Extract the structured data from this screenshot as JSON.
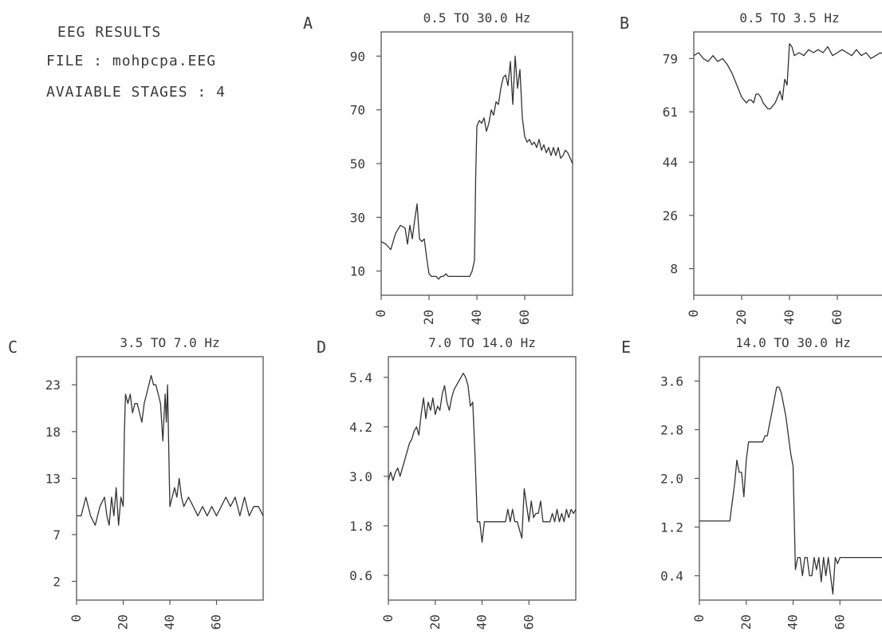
{
  "header": {
    "title": "EEG RESULTS",
    "file": "FILE : mohpcpa.EEG",
    "stages": "AVAIABLE STAGES : 4"
  },
  "colors": {
    "line": "#333333",
    "frame": "#555555",
    "text": "#3a3a3a"
  },
  "chart_data": [
    {
      "letter": "A",
      "title": "0.5 TO 30.0 Hz",
      "type": "line",
      "ylim": [
        1,
        99
      ],
      "xlim": [
        0,
        80
      ],
      "yticks": [
        10,
        30,
        50,
        70,
        90
      ],
      "ytick_labels": [
        "10",
        "30",
        "50",
        "70",
        "90"
      ],
      "xticks": [
        0,
        20,
        40,
        60
      ],
      "xtick_labels": [
        "0",
        "20",
        "40",
        "60"
      ],
      "grid": false,
      "series": [
        {
          "x": [
            0,
            2,
            4,
            6,
            8,
            10,
            11,
            12,
            13,
            14,
            15,
            16,
            17,
            18,
            19,
            20,
            21,
            22,
            23,
            24,
            25,
            26,
            27,
            28,
            29,
            30,
            31,
            32,
            33,
            34,
            35,
            36,
            37,
            38,
            39,
            39.5,
            40,
            41,
            42,
            43,
            44,
            45,
            46,
            47,
            48,
            49,
            50,
            51,
            52,
            53,
            54,
            55,
            56,
            57,
            58,
            59,
            60,
            61,
            62,
            63,
            64,
            65,
            66,
            67,
            68,
            69,
            70,
            71,
            72,
            73,
            74,
            75,
            76,
            77,
            78,
            79,
            80
          ],
          "y": [
            21,
            20,
            18,
            24,
            27,
            26,
            20,
            27,
            22,
            29,
            35,
            22,
            21,
            22,
            15,
            9,
            8,
            8,
            8,
            7,
            8,
            8,
            9,
            8,
            8,
            8,
            8,
            8,
            8,
            8,
            8,
            8,
            8,
            10,
            14,
            45,
            64,
            66,
            65,
            67,
            62,
            65,
            70,
            68,
            73,
            72,
            78,
            82,
            83,
            79,
            88,
            72,
            90,
            78,
            85,
            67,
            60,
            58,
            59,
            57,
            58,
            56,
            59,
            55,
            57,
            54,
            56,
            53,
            56,
            53,
            56,
            52,
            53,
            55,
            54,
            52,
            50
          ]
        }
      ]
    },
    {
      "letter": "B",
      "title": "0.5 TO 3.5 Hz",
      "type": "line",
      "ylim": [
        -1,
        88
      ],
      "xlim": [
        0,
        80
      ],
      "yticks": [
        8,
        26,
        44,
        61,
        79
      ],
      "ytick_labels": [
        "8",
        "26",
        "44",
        "61",
        "79"
      ],
      "xticks": [
        0,
        20,
        40,
        60
      ],
      "xtick_labels": [
        "0",
        "20",
        "40",
        "60"
      ],
      "grid": false,
      "series": [
        {
          "x": [
            0,
            2,
            4,
            6,
            8,
            10,
            12,
            14,
            16,
            17,
            18,
            19,
            20,
            21,
            22,
            23,
            24,
            25,
            26,
            27,
            28,
            29,
            30,
            31,
            32,
            33,
            34,
            35,
            36,
            37,
            38,
            39,
            40,
            41,
            42,
            44,
            46,
            48,
            50,
            52,
            54,
            56,
            58,
            60,
            62,
            64,
            66,
            68,
            70,
            72,
            74,
            76,
            78,
            80
          ],
          "y": [
            80,
            81,
            79,
            78,
            80,
            78,
            79,
            77,
            74,
            72,
            70,
            68,
            66,
            65,
            64,
            65,
            65,
            64,
            67,
            67,
            66,
            64,
            63,
            62,
            62,
            63,
            64,
            66,
            68,
            65,
            72,
            70,
            84,
            83,
            80,
            81,
            80,
            82,
            81,
            82,
            81,
            83,
            80,
            81,
            82,
            81,
            80,
            82,
            80,
            81,
            79,
            80,
            81,
            80
          ]
        }
      ]
    },
    {
      "letter": "C",
      "title": "3.5 TO 7.0 Hz",
      "type": "line",
      "ylim": [
        0,
        26
      ],
      "xlim": [
        0,
        80
      ],
      "yticks": [
        2,
        7,
        13,
        18,
        23
      ],
      "ytick_labels": [
        "2",
        "7",
        "13",
        "18",
        "23"
      ],
      "xticks": [
        0,
        20,
        40,
        60
      ],
      "xtick_labels": [
        "0",
        "20",
        "40",
        "60"
      ],
      "grid": false,
      "series": [
        {
          "x": [
            0,
            2,
            4,
            6,
            8,
            10,
            12,
            13,
            14,
            15,
            16,
            17,
            18,
            19,
            20,
            20.5,
            21,
            22,
            23,
            24,
            25,
            26,
            27,
            28,
            29,
            30,
            31,
            32,
            33,
            34,
            35,
            36,
            37,
            38,
            38.5,
            39,
            40,
            41,
            42,
            43,
            44,
            45,
            46,
            48,
            50,
            52,
            54,
            56,
            58,
            60,
            62,
            64,
            66,
            68,
            70,
            72,
            74,
            76,
            78,
            80
          ],
          "y": [
            9,
            9,
            11,
            9,
            8,
            10,
            11,
            9,
            8,
            11,
            9,
            12,
            8,
            11,
            10,
            18,
            22,
            21,
            22,
            20,
            21,
            21,
            20,
            19,
            21,
            22,
            23,
            24,
            23,
            23,
            22,
            21,
            17,
            22,
            19,
            23,
            10,
            11,
            12,
            11,
            13,
            11,
            10,
            11,
            10,
            9,
            10,
            9,
            10,
            9,
            10,
            11,
            10,
            11,
            9,
            11,
            9,
            10,
            10,
            9
          ]
        }
      ]
    },
    {
      "letter": "D",
      "title": "7.0 TO 14.0 Hz",
      "type": "line",
      "ylim": [
        0,
        5.9
      ],
      "xlim": [
        0,
        80
      ],
      "yticks": [
        0.6,
        1.8,
        3.0,
        4.2,
        5.4
      ],
      "ytick_labels": [
        "0.6",
        "1.8",
        "3.0",
        "4.2",
        "5.4"
      ],
      "xticks": [
        0,
        20,
        40,
        60
      ],
      "xtick_labels": [
        "0",
        "20",
        "40",
        "60"
      ],
      "grid": false,
      "series": [
        {
          "x": [
            0,
            1,
            2,
            3,
            4,
            5,
            6,
            7,
            8,
            9,
            10,
            11,
            12,
            13,
            14,
            15,
            16,
            17,
            18,
            19,
            20,
            21,
            22,
            23,
            24,
            25,
            26,
            27,
            28,
            29,
            30,
            31,
            32,
            33,
            34,
            35,
            36,
            37,
            38,
            39,
            40,
            41,
            42,
            43,
            44,
            45,
            46,
            47,
            48,
            49,
            50,
            51,
            52,
            53,
            54,
            55,
            56,
            57,
            58,
            59,
            60,
            61,
            62,
            63,
            64,
            65,
            66,
            67,
            68,
            69,
            70,
            71,
            72,
            73,
            74,
            75,
            76,
            77,
            78,
            79,
            80
          ],
          "y": [
            2.9,
            3.1,
            2.9,
            3.1,
            3.2,
            3.0,
            3.2,
            3.4,
            3.6,
            3.8,
            3.9,
            4.1,
            4.2,
            4.0,
            4.5,
            4.9,
            4.4,
            4.8,
            4.6,
            4.9,
            4.5,
            4.7,
            4.6,
            5.0,
            5.2,
            4.8,
            4.6,
            4.9,
            5.1,
            5.2,
            5.3,
            5.4,
            5.5,
            5.4,
            5.2,
            4.7,
            4.8,
            3.5,
            1.9,
            1.9,
            1.4,
            1.9,
            1.9,
            1.9,
            1.9,
            1.9,
            1.9,
            1.9,
            1.9,
            1.9,
            1.9,
            2.2,
            1.9,
            2.2,
            1.9,
            1.9,
            1.7,
            1.5,
            2.7,
            2.3,
            1.9,
            2.4,
            2.0,
            2.1,
            2.1,
            2.4,
            1.9,
            1.9,
            1.9,
            1.9,
            2.1,
            1.9,
            2.2,
            1.9,
            2.1,
            1.9,
            2.2,
            2.0,
            2.2,
            2.1,
            2.2
          ]
        }
      ]
    },
    {
      "letter": "E",
      "title": "14.0 TO 30.0 Hz",
      "type": "line",
      "ylim": [
        0,
        4.0
      ],
      "xlim": [
        0,
        80
      ],
      "yticks": [
        0.4,
        1.2,
        2.0,
        2.8,
        3.6
      ],
      "ytick_labels": [
        "0.4",
        "1.2",
        "2.0",
        "2.8",
        "3.6"
      ],
      "xticks": [
        0,
        20,
        40,
        60
      ],
      "xtick_labels": [
        "0",
        "20",
        "40",
        "60"
      ],
      "grid": false,
      "series": [
        {
          "x": [
            0,
            6,
            12,
            13,
            14,
            15,
            16,
            17,
            18,
            19,
            20,
            21,
            22,
            23,
            24,
            25,
            26,
            27,
            28,
            29,
            30,
            31,
            32,
            33,
            34,
            35,
            36,
            37,
            38,
            39,
            40,
            41,
            42,
            43,
            44,
            45,
            46,
            47,
            48,
            49,
            50,
            51,
            52,
            53,
            54,
            55,
            56,
            57,
            58,
            59,
            60,
            61,
            62,
            63,
            64,
            65,
            66,
            67,
            68,
            69,
            70,
            71,
            72,
            73,
            74,
            75,
            76,
            77,
            78,
            79,
            80
          ],
          "y": [
            1.3,
            1.3,
            1.3,
            1.3,
            1.6,
            1.9,
            2.3,
            2.1,
            2.1,
            1.7,
            2.3,
            2.6,
            2.6,
            2.6,
            2.6,
            2.6,
            2.6,
            2.6,
            2.7,
            2.7,
            2.9,
            3.1,
            3.3,
            3.5,
            3.5,
            3.4,
            3.2,
            3.0,
            2.7,
            2.4,
            2.2,
            0.5,
            0.7,
            0.7,
            0.4,
            0.7,
            0.7,
            0.4,
            0.4,
            0.7,
            0.5,
            0.7,
            0.3,
            0.7,
            0.4,
            0.7,
            0.4,
            0.1,
            0.7,
            0.6,
            0.7,
            0.7,
            0.7,
            0.7,
            0.7,
            0.7,
            0.7,
            0.7,
            0.7,
            0.7,
            0.7,
            0.7,
            0.7,
            0.7,
            0.7,
            0.7,
            0.7,
            0.7,
            0.7,
            0.7,
            0.7
          ]
        }
      ]
    }
  ]
}
